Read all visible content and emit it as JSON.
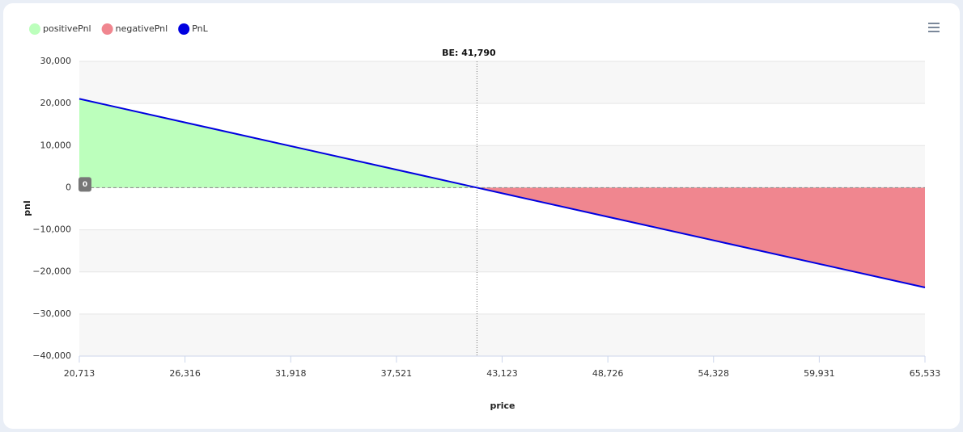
{
  "chart_data": {
    "type": "area",
    "xlabel": "price",
    "ylabel": "pnl",
    "x": [
      20713,
      41790,
      65533
    ],
    "series": [
      {
        "name": "positivePnl",
        "color": "#bcffbc",
        "values": [
          21100,
          0,
          null
        ]
      },
      {
        "name": "negativePnl",
        "color": "#f0868f",
        "values": [
          null,
          0,
          -23700
        ]
      },
      {
        "name": "PnL",
        "color": "#0000e0",
        "values": [
          21100,
          0,
          -23700
        ]
      }
    ],
    "xlim": [
      20713,
      65533
    ],
    "xticks": [
      {
        "value": 20713,
        "label": "20,713"
      },
      {
        "value": 26316,
        "label": "26,316"
      },
      {
        "value": 31918,
        "label": "31,918"
      },
      {
        "value": 37521,
        "label": "37,521"
      },
      {
        "value": 43123,
        "label": "43,123"
      },
      {
        "value": 48726,
        "label": "48,726"
      },
      {
        "value": 54328,
        "label": "54,328"
      },
      {
        "value": 59931,
        "label": "59,931"
      },
      {
        "value": 65533,
        "label": "65,533"
      }
    ],
    "ylim": [
      -40000,
      30000
    ],
    "yticks": [
      {
        "value": -40000,
        "label": "−40,000"
      },
      {
        "value": -30000,
        "label": "−30,000"
      },
      {
        "value": -20000,
        "label": "−20,000"
      },
      {
        "value": -10000,
        "label": "−10,000"
      },
      0,
      {
        "value": 10000,
        "label": "10,000"
      },
      {
        "value": 20000,
        "label": "20,000"
      },
      {
        "value": 30000,
        "label": "30,000"
      }
    ],
    "annotations": [
      {
        "x": 41790,
        "label": "BE: 41,790"
      },
      {
        "y": 0,
        "label": "0"
      }
    ],
    "legend": "top-left"
  }
}
